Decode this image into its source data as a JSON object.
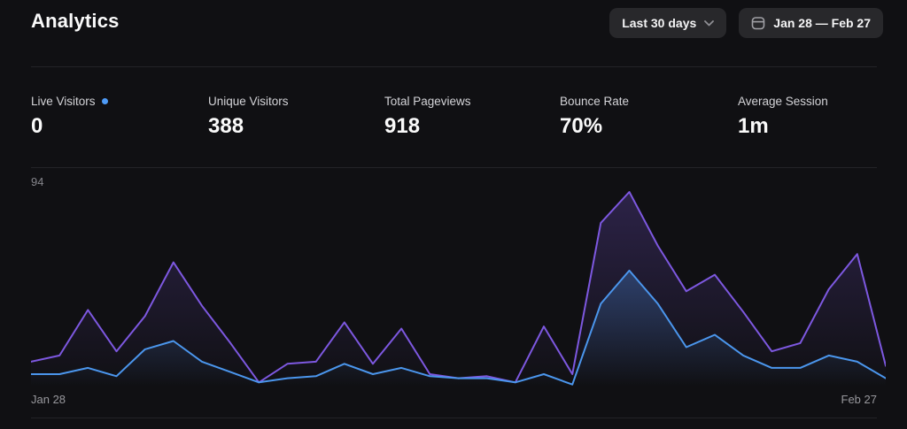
{
  "header": {
    "title": "Analytics",
    "range_button_label": "Last 30 days",
    "date_range_label": "Jan 28 — Feb 27"
  },
  "stats": [
    {
      "label": "Live Visitors",
      "value": "0",
      "live": true
    },
    {
      "label": "Unique Visitors",
      "value": "388"
    },
    {
      "label": "Total Pageviews",
      "value": "918"
    },
    {
      "label": "Bounce Rate",
      "value": "70%"
    },
    {
      "label": "Average Session",
      "value": "1m"
    }
  ],
  "chart_data": {
    "type": "area",
    "title": "",
    "xlabel": "",
    "ylabel": "",
    "ylim": [
      0,
      94
    ],
    "y_max_label": "94",
    "x_start_label": "Jan 28",
    "x_end_label": "Feb 27",
    "points_per_series": 31,
    "grid": false,
    "legend": false,
    "series": [
      {
        "name": "pageviews",
        "color": "#7d58e0",
        "fill_opacity": 0.26,
        "values": [
          12,
          15,
          37,
          17,
          34,
          60,
          39,
          21,
          2,
          11,
          12,
          31,
          11,
          28,
          6,
          4,
          5,
          2,
          29,
          6,
          79,
          94,
          68,
          46,
          54,
          36,
          17,
          21,
          47,
          64,
          10
        ]
      },
      {
        "name": "visitors",
        "color": "#4b96ed",
        "fill_opacity": 0.3,
        "values": [
          6,
          6,
          9,
          5,
          18,
          22,
          12,
          7,
          2,
          4,
          5,
          11,
          6,
          9,
          5,
          4,
          4,
          2,
          6,
          1,
          40,
          56,
          40,
          19,
          25,
          15,
          9,
          9,
          15,
          12,
          4
        ]
      }
    ]
  },
  "colors": {
    "background": "#101013",
    "panel": "#28282b",
    "divider": "#232327",
    "accent_purple": "#7d58e0",
    "accent_blue": "#4b96ed",
    "live_dot": "#4e9bf7"
  }
}
